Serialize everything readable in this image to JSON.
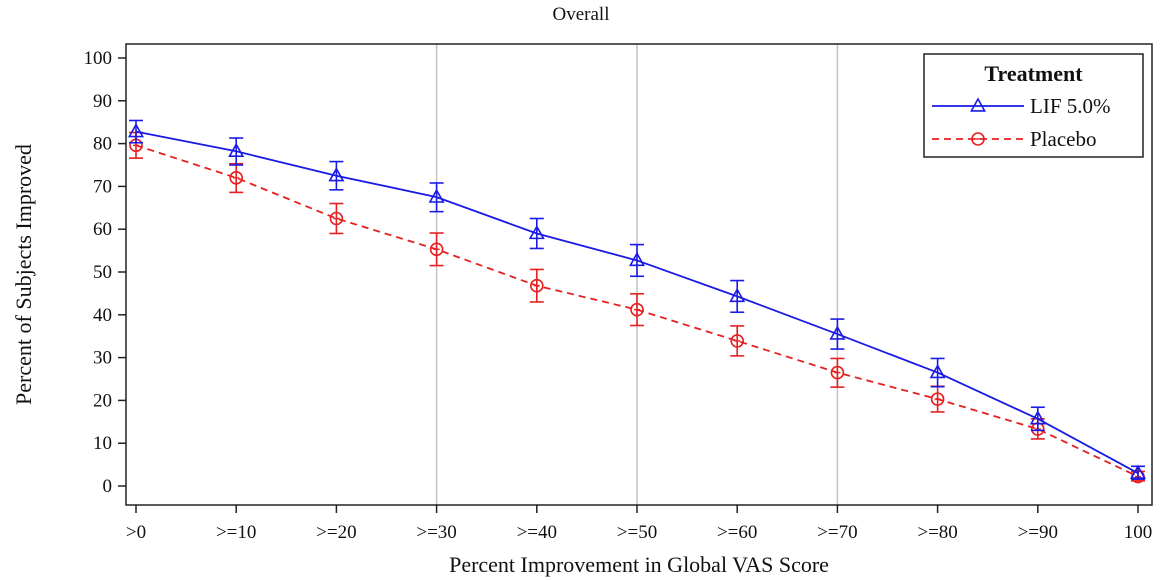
{
  "chart_data": {
    "type": "line",
    "title": "Overall",
    "xlabel": "Percent Improvement in Global VAS Score",
    "ylabel": "Percent of Subjects Improved",
    "categories": [
      ">0",
      ">=10",
      ">=20",
      ">=30",
      ">=40",
      ">=50",
      ">=60",
      ">=70",
      ">=80",
      ">=90",
      "100"
    ],
    "ylim": [
      0,
      100
    ],
    "yticks": [
      0,
      10,
      20,
      30,
      40,
      50,
      60,
      70,
      80,
      90,
      100
    ],
    "vertical_reference_lines_at": [
      ">=30",
      ">=50",
      ">=70"
    ],
    "legend": {
      "title": "Treatment",
      "position": "top-right"
    },
    "grid": false,
    "series": [
      {
        "name": "LIF 5.0%",
        "color": "#1a1ae6",
        "marker": "triangle",
        "line_style": "solid",
        "values": [
          82.8,
          78.2,
          72.5,
          67.5,
          59.0,
          52.7,
          44.3,
          35.5,
          26.5,
          15.7,
          3.0
        ],
        "error_lower": [
          80.2,
          75.0,
          69.2,
          64.1,
          55.5,
          49.0,
          40.6,
          32.0,
          23.2,
          13.0,
          1.6
        ],
        "error_upper": [
          85.4,
          81.3,
          75.8,
          70.8,
          62.5,
          56.4,
          48.0,
          39.0,
          29.8,
          18.4,
          4.6
        ]
      },
      {
        "name": "Placebo",
        "color": "#e62020",
        "marker": "circle",
        "line_style": "dashed",
        "values": [
          79.6,
          72.0,
          62.5,
          55.3,
          46.8,
          41.2,
          33.9,
          26.5,
          20.3,
          13.3,
          2.2
        ],
        "error_lower": [
          76.6,
          68.6,
          59.0,
          51.5,
          43.0,
          37.5,
          30.4,
          23.1,
          17.3,
          11.0,
          1.2
        ],
        "error_upper": [
          82.6,
          75.3,
          66.0,
          59.1,
          50.6,
          44.9,
          37.4,
          29.8,
          23.3,
          15.7,
          3.4
        ]
      }
    ]
  }
}
